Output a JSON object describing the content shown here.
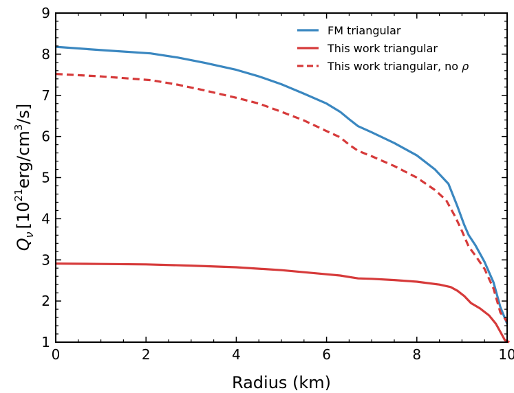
{
  "chart_data": {
    "type": "line",
    "xlabel": "Radius (km)",
    "ylabel": {
      "symbol": "Q",
      "subscript": "ν",
      "unit_pre": "[10",
      "unit_sup": "21",
      "unit_mid": "erg/cm",
      "unit_sup2": "3",
      "unit_post": "/s]"
    },
    "xlim": [
      0,
      10
    ],
    "ylim": [
      1,
      9
    ],
    "xticks": [
      "0",
      "2",
      "4",
      "6",
      "8",
      "10"
    ],
    "yticks": [
      "1",
      "2",
      "3",
      "4",
      "5",
      "6",
      "7",
      "8",
      "9"
    ],
    "legend_placement": "top-right",
    "grid": false,
    "series": [
      {
        "name": "FM triangular",
        "color": "#3a87c0",
        "dash": "solid",
        "points": [
          [
            0,
            8.18
          ],
          [
            1,
            8.1
          ],
          [
            2.1,
            8.02
          ],
          [
            2.7,
            7.92
          ],
          [
            3.3,
            7.79
          ],
          [
            4,
            7.62
          ],
          [
            4.5,
            7.46
          ],
          [
            5,
            7.27
          ],
          [
            5.5,
            7.04
          ],
          [
            6,
            6.8
          ],
          [
            6.3,
            6.6
          ],
          [
            6.5,
            6.42
          ],
          [
            6.7,
            6.25
          ],
          [
            7,
            6.1
          ],
          [
            7.5,
            5.84
          ],
          [
            8,
            5.54
          ],
          [
            8.4,
            5.2
          ],
          [
            8.7,
            4.85
          ],
          [
            8.9,
            4.3
          ],
          [
            9.05,
            3.85
          ],
          [
            9.15,
            3.6
          ],
          [
            9.3,
            3.35
          ],
          [
            9.5,
            2.95
          ],
          [
            9.7,
            2.45
          ],
          [
            9.85,
            1.85
          ],
          [
            10,
            1.45
          ]
        ]
      },
      {
        "name": "This work triangular",
        "color": "#d63a3a",
        "dash": "solid",
        "points": [
          [
            0,
            2.91
          ],
          [
            1,
            2.9
          ],
          [
            2,
            2.89
          ],
          [
            3,
            2.86
          ],
          [
            4,
            2.82
          ],
          [
            5,
            2.75
          ],
          [
            6,
            2.65
          ],
          [
            6.3,
            2.62
          ],
          [
            6.7,
            2.55
          ],
          [
            7,
            2.54
          ],
          [
            7.5,
            2.51
          ],
          [
            8,
            2.47
          ],
          [
            8.5,
            2.4
          ],
          [
            8.75,
            2.34
          ],
          [
            8.9,
            2.25
          ],
          [
            9.05,
            2.12
          ],
          [
            9.2,
            1.95
          ],
          [
            9.4,
            1.82
          ],
          [
            9.6,
            1.65
          ],
          [
            9.75,
            1.45
          ],
          [
            9.85,
            1.25
          ],
          [
            9.95,
            1.05
          ],
          [
            10.05,
            1.0
          ]
        ]
      },
      {
        "name": "This work triangular, no ρ",
        "color": "#d63a3a",
        "dash": "dashed",
        "points": [
          [
            0,
            7.52
          ],
          [
            1,
            7.46
          ],
          [
            2.1,
            7.37
          ],
          [
            2.7,
            7.26
          ],
          [
            3.3,
            7.12
          ],
          [
            4,
            6.94
          ],
          [
            4.5,
            6.8
          ],
          [
            5,
            6.6
          ],
          [
            5.5,
            6.39
          ],
          [
            6,
            6.13
          ],
          [
            6.3,
            5.98
          ],
          [
            6.5,
            5.8
          ],
          [
            6.7,
            5.65
          ],
          [
            7,
            5.52
          ],
          [
            7.5,
            5.28
          ],
          [
            8,
            5.0
          ],
          [
            8.4,
            4.7
          ],
          [
            8.65,
            4.45
          ],
          [
            8.85,
            4.05
          ],
          [
            9.0,
            3.7
          ],
          [
            9.15,
            3.32
          ],
          [
            9.3,
            3.1
          ],
          [
            9.5,
            2.78
          ],
          [
            9.7,
            2.3
          ],
          [
            9.85,
            1.72
          ],
          [
            10,
            1.5
          ]
        ]
      }
    ]
  }
}
